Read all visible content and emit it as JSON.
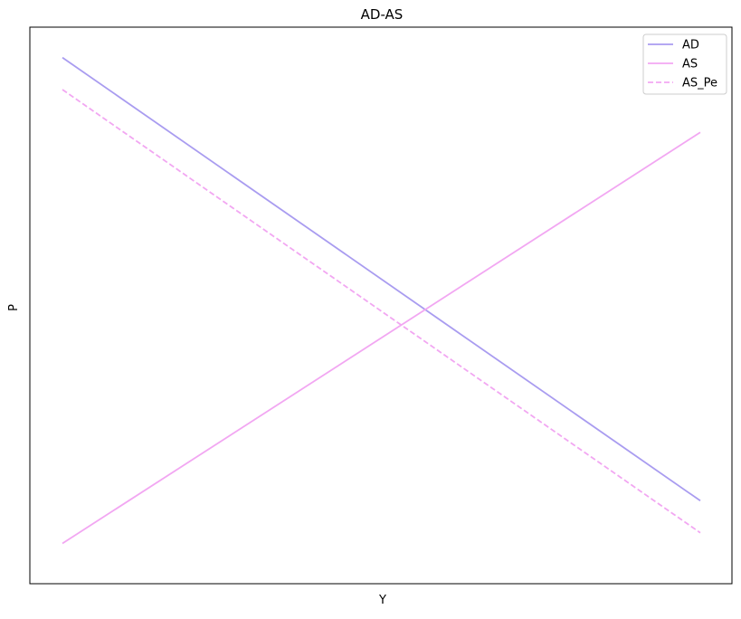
{
  "chart_data": {
    "type": "line",
    "title": "AD-AS",
    "xlabel": "Y",
    "ylabel": "P",
    "xlim": [
      0,
      10
    ],
    "ylim": [
      0,
      10
    ],
    "grid": false,
    "legend_position": "upper right",
    "series": [
      {
        "name": "AD",
        "color": "#a99cf0",
        "dash": "solid",
        "x": [
          0,
          10
        ],
        "y": [
          9.6,
          1.3
        ]
      },
      {
        "name": "AS",
        "color": "#f2a7f2",
        "dash": "solid",
        "x": [
          0,
          10
        ],
        "y": [
          0.5,
          8.2
        ]
      },
      {
        "name": "AS_Pe",
        "color": "#f2a7f2",
        "dash": "dashed",
        "x": [
          0,
          10
        ],
        "y": [
          9.0,
          0.7
        ]
      }
    ]
  }
}
